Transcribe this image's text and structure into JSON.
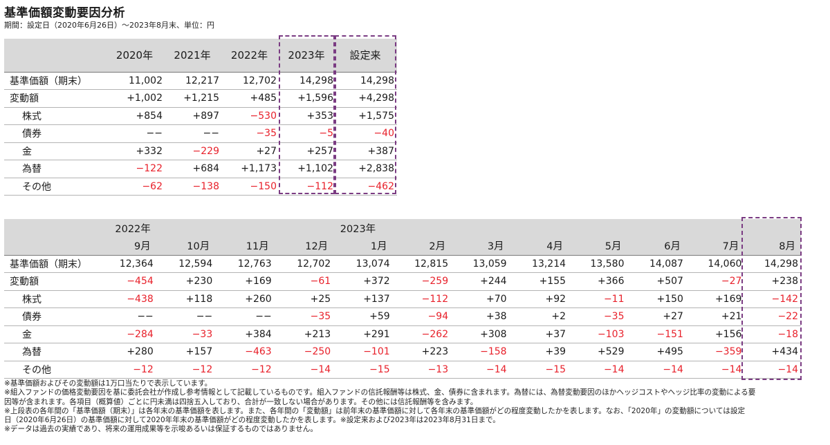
{
  "title": "基準価額変動要因分析",
  "subtitle": "期間：設定日（2020年6月26日）～2023年8月末、単位：円",
  "table1": {
    "columns": [
      "2020年",
      "2021年",
      "2022年",
      "2023年",
      "設定来"
    ],
    "rows": [
      {
        "label": "基準価額（期末）",
        "indent": false,
        "values": [
          "11,002",
          "12,217",
          "12,702",
          "14,298",
          "14,298"
        ]
      },
      {
        "label": "変動額",
        "indent": false,
        "values": [
          "+1,002",
          "+1,215",
          "+485",
          "+1,596",
          "+4,298"
        ]
      },
      {
        "label": "株式",
        "indent": true,
        "values": [
          "+854",
          "+897",
          "−530",
          "+353",
          "+1,575"
        ]
      },
      {
        "label": "債券",
        "indent": true,
        "values": [
          "−−",
          "−−",
          "−35",
          "−5",
          "−40"
        ]
      },
      {
        "label": "金",
        "indent": true,
        "values": [
          "+332",
          "−229",
          "+27",
          "+257",
          "+387"
        ]
      },
      {
        "label": "為替",
        "indent": true,
        "values": [
          "−122",
          "+684",
          "+1,173",
          "+1,102",
          "+2,838"
        ]
      },
      {
        "label": "その他",
        "indent": true,
        "values": [
          "−62",
          "−138",
          "−150",
          "−112",
          "−462"
        ]
      }
    ]
  },
  "table2": {
    "year_2022": "2022年",
    "year_2023": "2023年",
    "months": [
      "9月",
      "10月",
      "11月",
      "12月",
      "1月",
      "2月",
      "3月",
      "4月",
      "5月",
      "6月",
      "7月",
      "8月"
    ],
    "rows": [
      {
        "label": "基準価額（期末）",
        "indent": false,
        "values": [
          "12,364",
          "12,594",
          "12,763",
          "12,702",
          "13,074",
          "12,815",
          "13,059",
          "13,214",
          "13,580",
          "14,087",
          "14,060",
          "14,298"
        ]
      },
      {
        "label": "変動額",
        "indent": false,
        "values": [
          "−454",
          "+230",
          "+169",
          "−61",
          "+372",
          "−259",
          "+244",
          "+155",
          "+366",
          "+507",
          "−27",
          "+238"
        ]
      },
      {
        "label": "株式",
        "indent": true,
        "values": [
          "−438",
          "+118",
          "+260",
          "+25",
          "+137",
          "−112",
          "+70",
          "+92",
          "−11",
          "+150",
          "+169",
          "−142"
        ]
      },
      {
        "label": "債券",
        "indent": true,
        "values": [
          "−−",
          "−−",
          "−−",
          "−35",
          "+59",
          "−94",
          "+38",
          "+2",
          "−35",
          "+27",
          "+21",
          "−22"
        ]
      },
      {
        "label": "金",
        "indent": true,
        "values": [
          "−284",
          "−33",
          "+384",
          "+213",
          "+291",
          "−262",
          "+308",
          "+37",
          "−103",
          "−151",
          "+156",
          "−18"
        ]
      },
      {
        "label": "為替",
        "indent": true,
        "values": [
          "+280",
          "+157",
          "−463",
          "−250",
          "−101",
          "+223",
          "−158",
          "+39",
          "+529",
          "+495",
          "−359",
          "+434"
        ]
      },
      {
        "label": "その他",
        "indent": true,
        "values": [
          "−12",
          "−12",
          "−12",
          "−14",
          "−15",
          "−13",
          "−14",
          "−15",
          "−14",
          "−14",
          "−14",
          "−14"
        ]
      }
    ]
  },
  "colors": {
    "negative": "#e8202a",
    "highlight": "#7a3b82",
    "header_bg": "#d9d9d9"
  },
  "notes": [
    "※基準価額およびその変動額は1万口当たりで表示しています。",
    "※組入ファンドの価格変動要因を基に委託会社が作成し参考情報として記載しているものです。組入ファンドの信託報酬等は株式、金、債券に含まれます。為替には、為替変動要因のほかヘッジコストやヘッジ比率の変動による要",
    "因等が含まれます。各項目（概算値）ごとに円未満は四捨五入しており、合計が一致しない場合があります。その他には信託報酬等を含みます。",
    "※上段表の各年間の「基準価額（期末）」は各年末の基準価額を表します。また、各年間の「変動額」は前年末の基準価額に対して各年末の基準価額がどの程度変動したかを表します。なお、「2020年」の変動額については設定",
    "日（2020年6月26日）の基準価額に対して2020年年末の基準価額がどの程度変動したかを表します。※設定来および2023年は2023年8月31日まで。",
    "※データは過去の実績であり、将来の運用成果等を示唆あるいは保証するものではありません。"
  ]
}
